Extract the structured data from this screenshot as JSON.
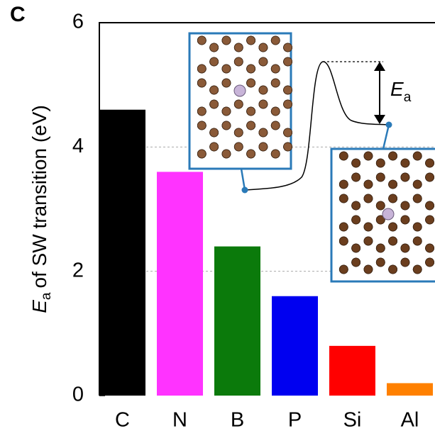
{
  "chart_data": {
    "type": "bar",
    "panel_label": "C",
    "y_label_symbol": "E",
    "y_label_subscript": "a",
    "y_label_text": "of SW transition (eV)",
    "annotation_symbol": "E",
    "annotation_subscript": "a",
    "categories": [
      "C",
      "N",
      "B",
      "P",
      "Si",
      "Al"
    ],
    "values": [
      4.6,
      3.6,
      2.4,
      1.6,
      0.8,
      0.2
    ],
    "colors": [
      "#000000",
      "#ff33ff",
      "#0b7a0b",
      "#0000f0",
      "#ff0000",
      "#ff8000"
    ],
    "ylim": [
      0,
      6
    ],
    "yticks": [
      0,
      2,
      4,
      6
    ],
    "grid": true
  }
}
